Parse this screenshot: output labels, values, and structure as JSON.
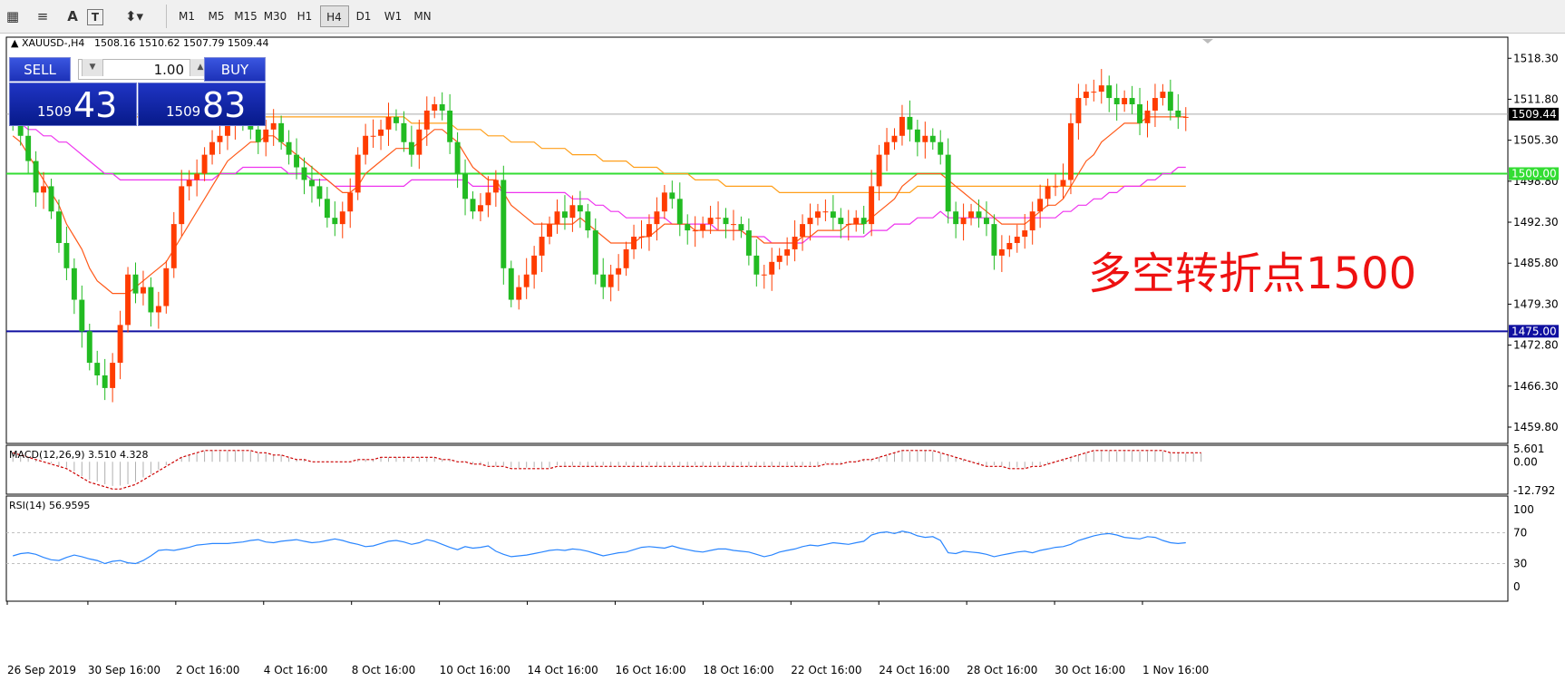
{
  "toolbar": {
    "timeframes": [
      "M1",
      "M5",
      "M15",
      "M30",
      "H1",
      "H4",
      "D1",
      "W1",
      "MN"
    ],
    "active_timeframe": "H4"
  },
  "header": {
    "symbol": "XAUUSD-,H4",
    "ohlc": "1508.16 1510.62 1507.79 1509.44"
  },
  "trade_panel": {
    "sell_label": "SELL",
    "buy_label": "BUY",
    "lot": "1.00",
    "sell_small": "1509",
    "sell_big": "43",
    "buy_small": "1509",
    "buy_big": "83"
  },
  "annotation": "多空转折点1500",
  "colors": {
    "bull": "#ff3c00",
    "bear": "#22bb22",
    "ma_fast": "#ff5a1a",
    "ma_mid": "#ee33ee",
    "ma_slow": "#ff9f1a",
    "level_green": "#33dd33",
    "level_blue": "#1010a0",
    "macd": "#cc0000",
    "rsi": "#2a86ff",
    "annotation": "#ee1111",
    "bid_line": "#aaaaaa"
  },
  "chart_data": [
    {
      "type": "candlestick",
      "title": "XAUUSD-,H4",
      "price_axis_ticks": [
        "1518.30",
        "1511.80",
        "1505.30",
        "1498.80",
        "1492.30",
        "1485.80",
        "1479.30",
        "1472.80",
        "1466.30",
        "1459.80"
      ],
      "time_axis_labels": [
        "26 Sep 2019",
        "30 Sep 16:00",
        "2 Oct 16:00",
        "4 Oct 16:00",
        "8 Oct 16:00",
        "10 Oct 16:00",
        "14 Oct 16:00",
        "16 Oct 16:00",
        "18 Oct 16:00",
        "22 Oct 16:00",
        "24 Oct 16:00",
        "28 Oct 16:00",
        "30 Oct 16:00",
        "1 Nov 16:00"
      ],
      "ylim": [
        1457.5,
        1521.5
      ],
      "current_price": "1509.44",
      "horizontal_levels": [
        {
          "label": "1500.00",
          "value": 1500.0,
          "color": "#33dd33"
        },
        {
          "label": "1475.00",
          "value": 1475.0,
          "color": "#1010a0"
        }
      ],
      "close": [
        1508,
        1506,
        1502,
        1497,
        1498,
        1494,
        1489,
        1485,
        1480,
        1475,
        1470,
        1468,
        1466,
        1470,
        1476,
        1484,
        1481,
        1482,
        1478,
        1479,
        1485,
        1492,
        1498,
        1499,
        1500,
        1503,
        1505,
        1506,
        1508,
        1509,
        1508,
        1507,
        1505,
        1507,
        1508,
        1505,
        1503,
        1501,
        1499,
        1498,
        1496,
        1493,
        1492,
        1494,
        1497,
        1503,
        1506,
        1506,
        1507,
        1509,
        1508,
        1505,
        1503,
        1507,
        1510,
        1511,
        1510,
        1505,
        1500,
        1496,
        1494,
        1495,
        1497,
        1499,
        1485,
        1480,
        1482,
        1484,
        1487,
        1490,
        1492,
        1494,
        1493,
        1495,
        1494,
        1491,
        1484,
        1482,
        1484,
        1485,
        1488,
        1490,
        1490,
        1492,
        1494,
        1497,
        1496,
        1492,
        1491,
        1491,
        1492,
        1493,
        1493,
        1492,
        1492,
        1491,
        1487,
        1484,
        1484,
        1486,
        1487,
        1488,
        1490,
        1492,
        1493,
        1494,
        1494,
        1493,
        1492,
        1492,
        1493,
        1492,
        1498,
        1503,
        1505,
        1506,
        1509,
        1507,
        1505,
        1506,
        1505,
        1503,
        1494,
        1492,
        1493,
        1494,
        1493,
        1492,
        1487,
        1488,
        1489,
        1490,
        1491,
        1494,
        1496,
        1498,
        1498,
        1499,
        1508,
        1512,
        1513,
        1513,
        1514,
        1512,
        1511,
        1512,
        1511,
        1508,
        1510,
        1512,
        1513,
        1510,
        1509,
        1509
      ],
      "ma_fast": [
        1506,
        1505,
        1503,
        1501,
        1499,
        1497,
        1495,
        1492,
        1490,
        1488,
        1485,
        1483,
        1482,
        1481,
        1481,
        1481,
        1482,
        1483,
        1484,
        1485,
        1486,
        1488,
        1490,
        1492,
        1494,
        1496,
        1498,
        1500,
        1502,
        1503,
        1504,
        1505,
        1505,
        1506,
        1506,
        1505,
        1504,
        1503,
        1502,
        1501,
        1500,
        1499,
        1498,
        1497,
        1497,
        1498,
        1500,
        1501,
        1502,
        1503,
        1504,
        1504,
        1504,
        1505,
        1506,
        1507,
        1507,
        1506,
        1505,
        1503,
        1501,
        1500,
        1499,
        1499,
        1497,
        1495,
        1494,
        1493,
        1492,
        1492,
        1492,
        1492,
        1492,
        1492,
        1493,
        1492,
        1491,
        1490,
        1489,
        1489,
        1489,
        1489,
        1490,
        1490,
        1491,
        1492,
        1492,
        1492,
        1492,
        1491,
        1491,
        1491,
        1491,
        1491,
        1491,
        1491,
        1490,
        1490,
        1489,
        1489,
        1489,
        1489,
        1489,
        1490,
        1490,
        1491,
        1491,
        1491,
        1491,
        1492,
        1492,
        1492,
        1493,
        1494,
        1495,
        1496,
        1498,
        1499,
        1500,
        1500,
        1500,
        1500,
        1499,
        1498,
        1497,
        1496,
        1495,
        1494,
        1493,
        1492,
        1492,
        1492,
        1492,
        1493,
        1494,
        1495,
        1495,
        1496,
        1498,
        1500,
        1502,
        1503,
        1505,
        1506,
        1507,
        1508,
        1508,
        1508,
        1509,
        1509,
        1509,
        1509,
        1509,
        1509
      ],
      "ma_mid": [
        1508,
        1508,
        1507,
        1507,
        1506,
        1506,
        1505,
        1505,
        1504,
        1503,
        1502,
        1501,
        1500,
        1500,
        1499,
        1499,
        1499,
        1499,
        1499,
        1499,
        1499,
        1499,
        1499,
        1499,
        1499,
        1499,
        1499,
        1500,
        1500,
        1500,
        1501,
        1501,
        1501,
        1501,
        1501,
        1501,
        1500,
        1500,
        1500,
        1499,
        1499,
        1499,
        1498,
        1498,
        1498,
        1498,
        1498,
        1498,
        1498,
        1498,
        1498,
        1498,
        1499,
        1499,
        1499,
        1499,
        1499,
        1499,
        1499,
        1499,
        1498,
        1498,
        1498,
        1498,
        1497,
        1497,
        1497,
        1497,
        1497,
        1497,
        1497,
        1497,
        1497,
        1496,
        1496,
        1496,
        1495,
        1495,
        1494,
        1494,
        1493,
        1493,
        1493,
        1493,
        1493,
        1493,
        1492,
        1492,
        1492,
        1492,
        1492,
        1492,
        1491,
        1491,
        1491,
        1491,
        1490,
        1490,
        1490,
        1489,
        1489,
        1489,
        1489,
        1489,
        1490,
        1490,
        1490,
        1490,
        1490,
        1490,
        1490,
        1490,
        1491,
        1491,
        1491,
        1492,
        1492,
        1492,
        1493,
        1493,
        1493,
        1494,
        1493,
        1493,
        1493,
        1493,
        1493,
        1493,
        1493,
        1493,
        1493,
        1493,
        1493,
        1493,
        1493,
        1493,
        1493,
        1494,
        1494,
        1495,
        1495,
        1496,
        1496,
        1497,
        1497,
        1498,
        1498,
        1498,
        1499,
        1499,
        1500,
        1500,
        1501,
        1501
      ],
      "ma_slow": [
        1509,
        1509,
        1509,
        1509,
        1509,
        1509,
        1509,
        1509,
        1509,
        1509,
        1509,
        1509,
        1509,
        1509,
        1509,
        1509,
        1509,
        1509,
        1509,
        1509,
        1509,
        1509,
        1509,
        1509,
        1509,
        1509,
        1509,
        1509,
        1509,
        1509,
        1509,
        1509,
        1509,
        1509,
        1509,
        1509,
        1509,
        1509,
        1509,
        1509,
        1509,
        1509,
        1509,
        1509,
        1509,
        1509,
        1509,
        1509,
        1509,
        1509,
        1509,
        1509,
        1508,
        1508,
        1508,
        1508,
        1508,
        1508,
        1507,
        1507,
        1507,
        1507,
        1506,
        1506,
        1506,
        1505,
        1505,
        1505,
        1505,
        1504,
        1504,
        1504,
        1504,
        1503,
        1503,
        1503,
        1503,
        1502,
        1502,
        1502,
        1502,
        1501,
        1501,
        1501,
        1501,
        1500,
        1500,
        1500,
        1500,
        1499,
        1499,
        1499,
        1499,
        1498,
        1498,
        1498,
        1498,
        1498,
        1498,
        1498,
        1497,
        1497,
        1497,
        1497,
        1497,
        1497,
        1497,
        1497,
        1497,
        1497,
        1497,
        1497,
        1497,
        1497,
        1497,
        1497,
        1497,
        1497,
        1498,
        1498,
        1498,
        1498,
        1498,
        1498,
        1498,
        1498,
        1498,
        1498,
        1498,
        1498,
        1498,
        1498,
        1498,
        1498,
        1498,
        1498,
        1498,
        1498,
        1498,
        1498,
        1498,
        1498,
        1498,
        1498,
        1498,
        1498,
        1498,
        1498,
        1498,
        1498,
        1498,
        1498,
        1498,
        1498
      ]
    },
    {
      "type": "line",
      "title": "MACD(12,26,9) 3.510 4.328",
      "ticks": [
        "5.601",
        "0.00",
        "-12.792"
      ],
      "ylim": [
        -13.5,
        6.5
      ],
      "signal": [
        4,
        3,
        2,
        1,
        0,
        -1,
        -2,
        -3,
        -5,
        -7,
        -9,
        -10,
        -11,
        -12,
        -12,
        -11,
        -10,
        -8,
        -6,
        -4,
        -2,
        0,
        2,
        3,
        4,
        5,
        5,
        5,
        5,
        5,
        5,
        5,
        4,
        4,
        3,
        3,
        2,
        1,
        1,
        0,
        0,
        0,
        0,
        0,
        0,
        1,
        1,
        1,
        2,
        2,
        2,
        2,
        2,
        2,
        2,
        2,
        1,
        1,
        0,
        0,
        -1,
        -1,
        -2,
        -2,
        -2,
        -3,
        -3,
        -3,
        -3,
        -3,
        -3,
        -2,
        -2,
        -2,
        -2,
        -2,
        -2,
        -2,
        -2,
        -2,
        -2,
        -2,
        -2,
        -2,
        -2,
        -2,
        -2,
        -2,
        -2,
        -2,
        -2,
        -2,
        -2,
        -2,
        -2,
        -2,
        -2,
        -2,
        -2,
        -2,
        -2,
        -2,
        -2,
        -2,
        -2,
        -2,
        -1,
        -1,
        -1,
        0,
        0,
        1,
        1,
        2,
        3,
        4,
        5,
        5,
        5,
        5,
        5,
        4,
        3,
        2,
        1,
        0,
        -1,
        -2,
        -2,
        -2,
        -3,
        -3,
        -3,
        -2,
        -2,
        -1,
        0,
        1,
        2,
        3,
        4,
        5,
        5,
        5,
        5,
        5,
        5,
        5,
        5,
        5,
        5,
        4,
        4,
        4,
        4,
        4
      ]
    },
    {
      "type": "line",
      "title": "RSI(14) 56.9595",
      "ticks": [
        "100",
        "70",
        "30",
        "0"
      ],
      "ylim": [
        0,
        100
      ],
      "levels": [
        70,
        30
      ],
      "values": [
        40,
        43,
        44,
        42,
        38,
        35,
        34,
        38,
        41,
        39,
        36,
        34,
        30,
        33,
        34,
        31,
        30,
        34,
        40,
        47,
        48,
        47,
        49,
        51,
        54,
        55,
        56,
        56,
        56,
        57,
        58,
        60,
        61,
        58,
        57,
        59,
        60,
        61,
        59,
        57,
        58,
        60,
        62,
        60,
        57,
        55,
        52,
        53,
        56,
        59,
        60,
        58,
        55,
        57,
        61,
        59,
        55,
        51,
        48,
        52,
        50,
        51,
        53,
        46,
        42,
        39,
        40,
        41,
        43,
        45,
        47,
        48,
        47,
        49,
        48,
        46,
        43,
        40,
        42,
        44,
        45,
        48,
        51,
        52,
        51,
        50,
        53,
        50,
        48,
        46,
        45,
        47,
        49,
        49,
        47,
        46,
        45,
        42,
        39,
        41,
        45,
        47,
        49,
        52,
        54,
        53,
        55,
        57,
        56,
        55,
        57,
        59,
        67,
        70,
        71,
        69,
        72,
        70,
        66,
        64,
        65,
        60,
        44,
        43,
        46,
        45,
        44,
        42,
        39,
        41,
        43,
        45,
        46,
        44,
        47,
        49,
        51,
        52,
        55,
        60,
        63,
        66,
        68,
        69,
        67,
        64,
        63,
        62,
        65,
        64,
        60,
        57,
        56,
        57
      ]
    }
  ]
}
